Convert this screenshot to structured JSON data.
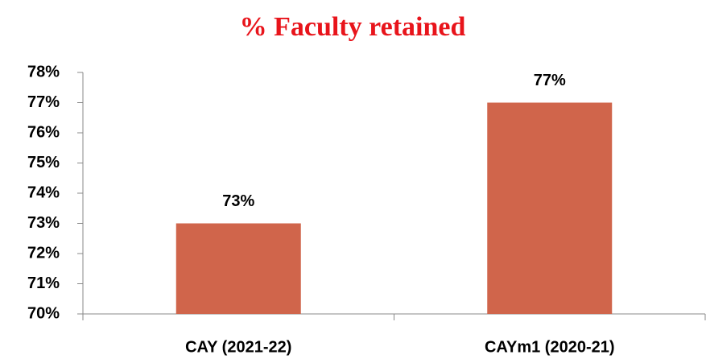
{
  "chart_data": {
    "type": "bar",
    "title": "% Faculty retained",
    "categories": [
      "CAY (2021-22)",
      "CAYm1 (2020-21)"
    ],
    "values": [
      73,
      77
    ],
    "value_labels": [
      "73%",
      "77%"
    ],
    "color": "#d0654b",
    "ylim": [
      70,
      78
    ],
    "yticks": [
      {
        "value": 70,
        "label": "70%"
      },
      {
        "value": 71,
        "label": "71%"
      },
      {
        "value": 72,
        "label": "72%"
      },
      {
        "value": 73,
        "label": "73%"
      },
      {
        "value": 74,
        "label": "74%"
      },
      {
        "value": 75,
        "label": "75%"
      },
      {
        "value": 76,
        "label": "76%"
      },
      {
        "value": 77,
        "label": "77%"
      },
      {
        "value": 78,
        "label": "78%"
      }
    ],
    "grid": false
  }
}
